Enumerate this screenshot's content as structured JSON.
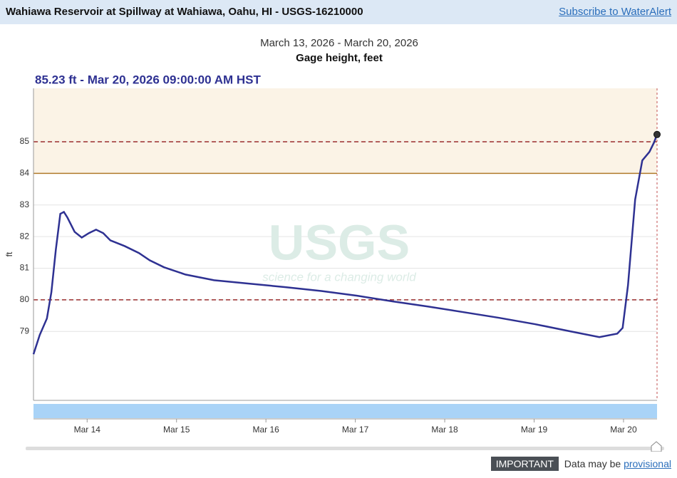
{
  "header": {
    "title": "Wahiawa Reservoir at Spillway at Wahiawa, Oahu, HI - USGS-16210000",
    "link": "Subscribe to WaterAlert"
  },
  "chart_data": {
    "type": "line",
    "date_range": "March 13, 2026 - March 20, 2026",
    "title": "Gage height, feet",
    "headline": "85.23 ft - Mar 20, 2026 09:00:00 AM HST",
    "y_label": "ft",
    "watermark": {
      "logo": "USGS",
      "tagline": "science for a changing world"
    },
    "x": [
      13.4,
      13.47,
      13.55,
      13.6,
      13.65,
      13.7,
      13.74,
      13.78,
      13.86,
      13.94,
      14.02,
      14.1,
      14.18,
      14.26,
      14.42,
      14.58,
      14.7,
      14.86,
      15.1,
      15.42,
      15.82,
      16.22,
      16.62,
      17.02,
      17.42,
      17.81,
      18.21,
      18.61,
      19.01,
      19.41,
      19.73,
      19.93,
      19.99,
      20.05,
      20.13,
      20.21,
      20.29,
      20.34,
      20.375
    ],
    "series": [
      {
        "name": "Gage height",
        "color": "#2e3192",
        "values": [
          78.28,
          78.89,
          79.41,
          80.24,
          81.59,
          82.72,
          82.78,
          82.6,
          82.15,
          81.97,
          82.11,
          82.22,
          82.11,
          81.88,
          81.7,
          81.48,
          81.25,
          81.03,
          80.8,
          80.62,
          80.51,
          80.4,
          80.28,
          80.13,
          79.95,
          79.79,
          79.61,
          79.43,
          79.23,
          79.0,
          78.82,
          78.93,
          79.11,
          80.46,
          83.17,
          84.41,
          84.68,
          84.97,
          85.23
        ]
      }
    ],
    "xlim": [
      13.4,
      20.375
    ],
    "xticks": [
      {
        "value": 14,
        "label": "Mar 14"
      },
      {
        "value": 15,
        "label": "Mar 15"
      },
      {
        "value": 16,
        "label": "Mar 16"
      },
      {
        "value": 17,
        "label": "Mar 17"
      },
      {
        "value": 18,
        "label": "Mar 18"
      },
      {
        "value": 19,
        "label": "Mar 19"
      },
      {
        "value": 20,
        "label": "Mar 20"
      }
    ],
    "ylim": [
      76.82,
      86.69
    ],
    "yticks": [
      79,
      80,
      81,
      82,
      83,
      84,
      85
    ],
    "grid": true,
    "band_from": 84,
    "reference_lines": [
      85,
      84,
      80
    ]
  },
  "footer": {
    "badge": "IMPORTANT",
    "text": "Data may be",
    "link": "provisional"
  }
}
